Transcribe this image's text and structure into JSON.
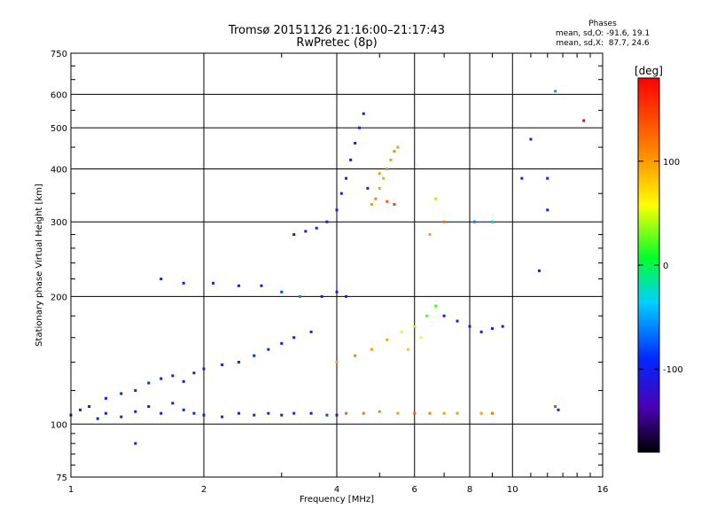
{
  "chart_data": {
    "type": "scatter",
    "title": "Tromsø 20151126 21:16:00–21:17:43",
    "subtitle": "RwPretec (8p)",
    "stats": {
      "heading": "Phases",
      "o_line": "mean, sd,O: -91.6, 19.1",
      "x_line": "mean, sd,X:  87.7, 24.6"
    },
    "xlabel": "Frequency [MHz]",
    "ylabel": "Stationary phase Virtual Height [km]",
    "xscale": "log",
    "yscale": "log",
    "xlim": [
      1,
      16
    ],
    "ylim": [
      75,
      750
    ],
    "xticks": [
      1,
      2,
      4,
      6,
      8,
      10,
      16
    ],
    "yticks": [
      75,
      100,
      200,
      300,
      400,
      500,
      600,
      750
    ],
    "grid": true,
    "colorbar": {
      "label": "[deg]",
      "range": [
        -180,
        180
      ],
      "ticks": [
        100,
        0,
        -100
      ],
      "colormap": "rainbow"
    },
    "series": [
      {
        "points": [
          [
            1.0,
            105,
            -100
          ],
          [
            1.05,
            108,
            -95
          ],
          [
            1.1,
            110,
            -110
          ],
          [
            1.15,
            103,
            -100
          ],
          [
            1.2,
            106,
            -90
          ],
          [
            1.3,
            104,
            -105
          ],
          [
            1.4,
            107,
            -100
          ],
          [
            1.5,
            110,
            -95
          ],
          [
            1.6,
            106,
            -100
          ],
          [
            1.7,
            112,
            -110
          ],
          [
            1.8,
            108,
            -100
          ],
          [
            1.9,
            106,
            -95
          ],
          [
            2.0,
            105,
            -100
          ],
          [
            2.2,
            104,
            -100
          ],
          [
            2.4,
            106,
            -95
          ],
          [
            2.6,
            105,
            -100
          ],
          [
            2.8,
            106,
            -90
          ],
          [
            3.0,
            105,
            -100
          ],
          [
            3.2,
            106,
            -95
          ],
          [
            3.5,
            106,
            -100
          ],
          [
            3.8,
            105,
            -80
          ],
          [
            4.0,
            105,
            -100
          ]
        ]
      },
      {
        "points": [
          [
            1.2,
            115,
            -100
          ],
          [
            1.3,
            118,
            -105
          ],
          [
            1.4,
            120,
            -100
          ],
          [
            1.5,
            125,
            -95
          ],
          [
            1.6,
            128,
            -100
          ],
          [
            1.7,
            130,
            -110
          ],
          [
            1.8,
            126,
            -100
          ],
          [
            1.9,
            132,
            -95
          ],
          [
            2.0,
            135,
            -100
          ],
          [
            2.2,
            138,
            -100
          ],
          [
            2.4,
            140,
            -95
          ],
          [
            2.6,
            145,
            -100
          ],
          [
            2.8,
            150,
            -90
          ],
          [
            3.0,
            155,
            -100
          ],
          [
            3.2,
            160,
            -100
          ],
          [
            3.5,
            165,
            -95
          ],
          [
            1.6,
            220,
            -100
          ],
          [
            1.8,
            215,
            -100
          ],
          [
            2.1,
            215,
            -95
          ],
          [
            2.4,
            212,
            -100
          ],
          [
            2.7,
            212,
            -100
          ],
          [
            3.0,
            205,
            -80
          ],
          [
            3.3,
            200,
            -60
          ],
          [
            3.7,
            200,
            -100
          ],
          [
            4.0,
            205,
            -100
          ],
          [
            4.2,
            200,
            -100
          ]
        ]
      },
      {
        "points": [
          [
            3.2,
            280,
            -100
          ],
          [
            3.4,
            285,
            -100
          ],
          [
            3.6,
            290,
            -95
          ],
          [
            3.8,
            300,
            -100
          ],
          [
            4.0,
            320,
            -100
          ],
          [
            4.1,
            350,
            -100
          ],
          [
            4.2,
            380,
            -95
          ],
          [
            4.3,
            420,
            -100
          ],
          [
            4.4,
            460,
            -100
          ],
          [
            4.5,
            500,
            -95
          ],
          [
            4.6,
            540,
            -100
          ],
          [
            4.7,
            360,
            -100
          ]
        ]
      },
      {
        "points": [
          [
            4.8,
            330,
            100
          ],
          [
            4.9,
            340,
            110
          ],
          [
            5.0,
            360,
            100
          ],
          [
            5.1,
            380,
            95
          ],
          [
            5.2,
            400,
            105
          ],
          [
            5.3,
            420,
            100
          ],
          [
            5.4,
            440,
            110
          ],
          [
            5.5,
            450,
            100
          ],
          [
            5.2,
            335,
            130
          ],
          [
            5.4,
            330,
            150
          ],
          [
            5.0,
            390,
            100
          ]
        ]
      },
      {
        "points": [
          [
            4.0,
            140,
            100
          ],
          [
            4.4,
            145,
            110
          ],
          [
            4.8,
            150,
            100
          ],
          [
            5.2,
            158,
            95
          ],
          [
            5.6,
            165,
            60
          ],
          [
            6.0,
            170,
            40
          ],
          [
            6.4,
            180,
            20
          ],
          [
            6.7,
            190,
            20
          ],
          [
            6.2,
            160,
            60
          ],
          [
            5.8,
            150,
            80
          ],
          [
            7.0,
            180,
            -100
          ],
          [
            7.5,
            175,
            -100
          ],
          [
            8.0,
            170,
            -100
          ],
          [
            8.5,
            165,
            -100
          ],
          [
            9.0,
            168,
            -100
          ],
          [
            9.5,
            170,
            -100
          ],
          [
            4.2,
            106,
            130
          ],
          [
            4.6,
            106,
            120
          ],
          [
            5.0,
            107,
            110
          ],
          [
            5.5,
            106,
            100
          ],
          [
            6.0,
            106,
            130
          ],
          [
            6.5,
            106,
            110
          ],
          [
            7.0,
            106,
            100
          ],
          [
            7.5,
            106,
            100
          ],
          [
            8.5,
            106,
            100
          ],
          [
            9.0,
            106,
            120
          ]
        ]
      },
      {
        "points": [
          [
            6.7,
            340,
            40
          ],
          [
            6.5,
            280,
            100
          ],
          [
            7.0,
            300,
            120
          ],
          [
            8.2,
            300,
            -60
          ],
          [
            9.0,
            300,
            -40
          ],
          [
            10.5,
            380,
            -100
          ],
          [
            11.0,
            470,
            -100
          ],
          [
            12.0,
            380,
            -100
          ],
          [
            12.5,
            610,
            -50
          ],
          [
            14.5,
            520,
            180
          ],
          [
            12.0,
            320,
            -100
          ],
          [
            11.5,
            230,
            -100
          ],
          [
            12.5,
            110,
            150
          ],
          [
            12.7,
            108,
            -100
          ],
          [
            1.4,
            90,
            -100
          ]
        ]
      }
    ]
  }
}
